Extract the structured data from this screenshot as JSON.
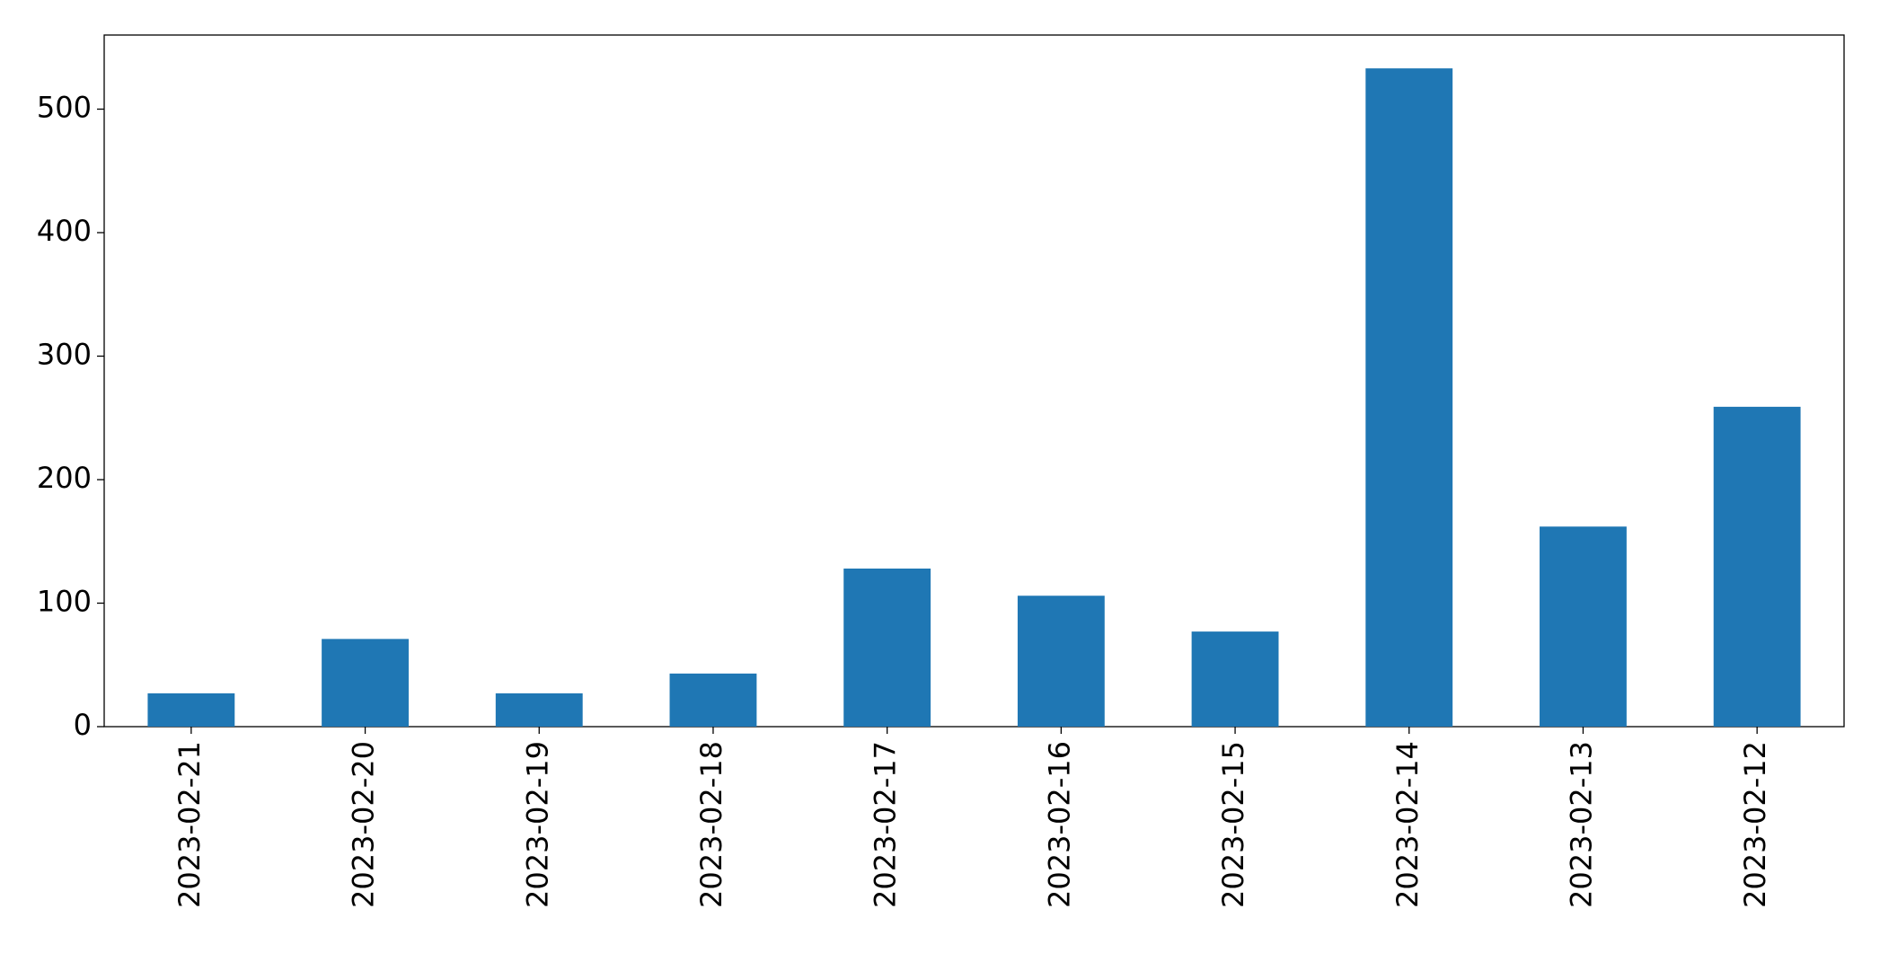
{
  "chart_data": {
    "type": "bar",
    "categories": [
      "2023-02-21",
      "2023-02-20",
      "2023-02-19",
      "2023-02-18",
      "2023-02-17",
      "2023-02-16",
      "2023-02-15",
      "2023-02-14",
      "2023-02-13",
      "2023-02-12"
    ],
    "values": [
      27,
      71,
      27,
      43,
      128,
      106,
      77,
      533,
      162,
      259
    ],
    "color": "#1f77b4",
    "ylim": [
      0,
      560
    ],
    "yticks": [
      0,
      100,
      200,
      300,
      400,
      500
    ],
    "grid": false
  }
}
